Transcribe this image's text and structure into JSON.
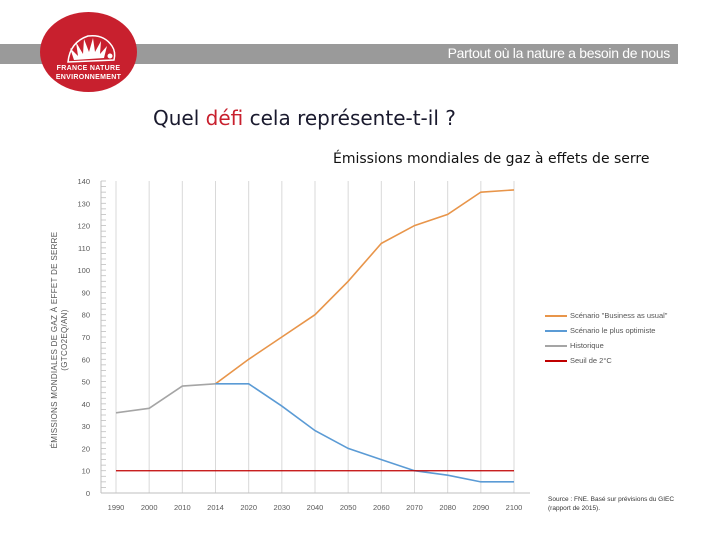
{
  "header": {
    "tagline": "Partout où la nature a besoin de nous",
    "logo_line1": "FRANCE NATURE",
    "logo_line2": "ENVIRONNEMENT"
  },
  "slide": {
    "title_part1": "Quel ",
    "title_accent": "défi",
    "title_part2": " cela représente-t-il ?"
  },
  "colors": {
    "brand_red": "#c8202e",
    "bau": "#e8954a",
    "optimistic": "#5b9bd5",
    "historic": "#a5a5a5",
    "threshold": "#c00000"
  },
  "chart_data": {
    "type": "line",
    "title": "Émissions mondiales de gaz à effets de serre",
    "ylabel": "ÉMISSIONS MONDIALES DE GAZ À EFFET DE SERRE (GTCO2EQ/AN)",
    "xlabel": "",
    "categories": [
      "1990",
      "2000",
      "2010",
      "2014",
      "2020",
      "2030",
      "2040",
      "2050",
      "2060",
      "2070",
      "2080",
      "2090",
      "2100"
    ],
    "ylim": [
      0,
      140
    ],
    "yticks": [
      0,
      10,
      20,
      30,
      40,
      50,
      60,
      70,
      80,
      90,
      100,
      110,
      120,
      130,
      140
    ],
    "grid": "vertical",
    "legend_position": "right",
    "series": [
      {
        "name": "Scénario \"Business as usual\"",
        "color": "#e8954a",
        "values": [
          null,
          null,
          null,
          49,
          60,
          70,
          80,
          95,
          112,
          120,
          125,
          135,
          136
        ]
      },
      {
        "name": "Scénario le plus optimiste",
        "color": "#5b9bd5",
        "values": [
          null,
          null,
          null,
          49,
          49,
          39,
          28,
          20,
          15,
          10,
          8,
          5,
          5
        ]
      },
      {
        "name": "Historique",
        "color": "#a5a5a5",
        "values": [
          36,
          38,
          48,
          49,
          null,
          null,
          null,
          null,
          null,
          null,
          null,
          null,
          null
        ]
      },
      {
        "name": "Seuil de 2°C",
        "color": "#c00000",
        "values": [
          10,
          10,
          10,
          10,
          10,
          10,
          10,
          10,
          10,
          10,
          10,
          10,
          10
        ]
      }
    ],
    "source": "Source : FNE. Basé sur prévisions du GIEC (rapport de 2015)."
  }
}
